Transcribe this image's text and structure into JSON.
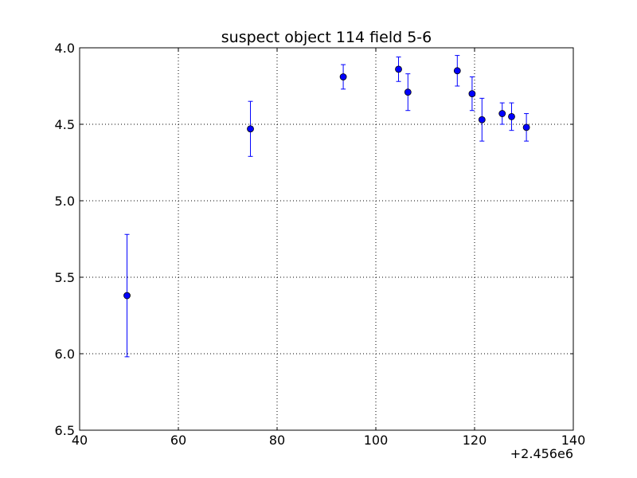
{
  "chart_data": {
    "type": "scatter",
    "title": "suspect object 114 field 5-6",
    "xlabel": "",
    "ylabel": "",
    "x_offset_label": "+2.456e6",
    "xlim": [
      40,
      140
    ],
    "ylim": [
      4.0,
      6.5
    ],
    "y_inverted": true,
    "grid": true,
    "x_ticks": [
      40,
      60,
      80,
      100,
      120,
      140
    ],
    "x_tick_labels": [
      "40",
      "60",
      "80",
      "100",
      "120",
      "140"
    ],
    "y_ticks": [
      4.0,
      4.5,
      5.0,
      5.5,
      6.0,
      6.5
    ],
    "y_tick_labels": [
      "4.0",
      "4.5",
      "5.0",
      "5.5",
      "6.0",
      "6.5"
    ],
    "series": [
      {
        "color": "#0000ff",
        "marker": "circle",
        "points": [
          {
            "x": 49.6,
            "y": 5.62,
            "yerr": 0.4
          },
          {
            "x": 74.6,
            "y": 4.53,
            "yerr": 0.18
          },
          {
            "x": 93.4,
            "y": 4.19,
            "yerr": 0.08
          },
          {
            "x": 104.6,
            "y": 4.14,
            "yerr": 0.08
          },
          {
            "x": 106.5,
            "y": 4.29,
            "yerr": 0.12
          },
          {
            "x": 116.5,
            "y": 4.15,
            "yerr": 0.1
          },
          {
            "x": 119.5,
            "y": 4.3,
            "yerr": 0.11
          },
          {
            "x": 121.5,
            "y": 4.47,
            "yerr": 0.14
          },
          {
            "x": 125.6,
            "y": 4.43,
            "yerr": 0.07
          },
          {
            "x": 127.5,
            "y": 4.45,
            "yerr": 0.09
          },
          {
            "x": 130.5,
            "y": 4.52,
            "yerr": 0.09
          }
        ]
      }
    ]
  }
}
